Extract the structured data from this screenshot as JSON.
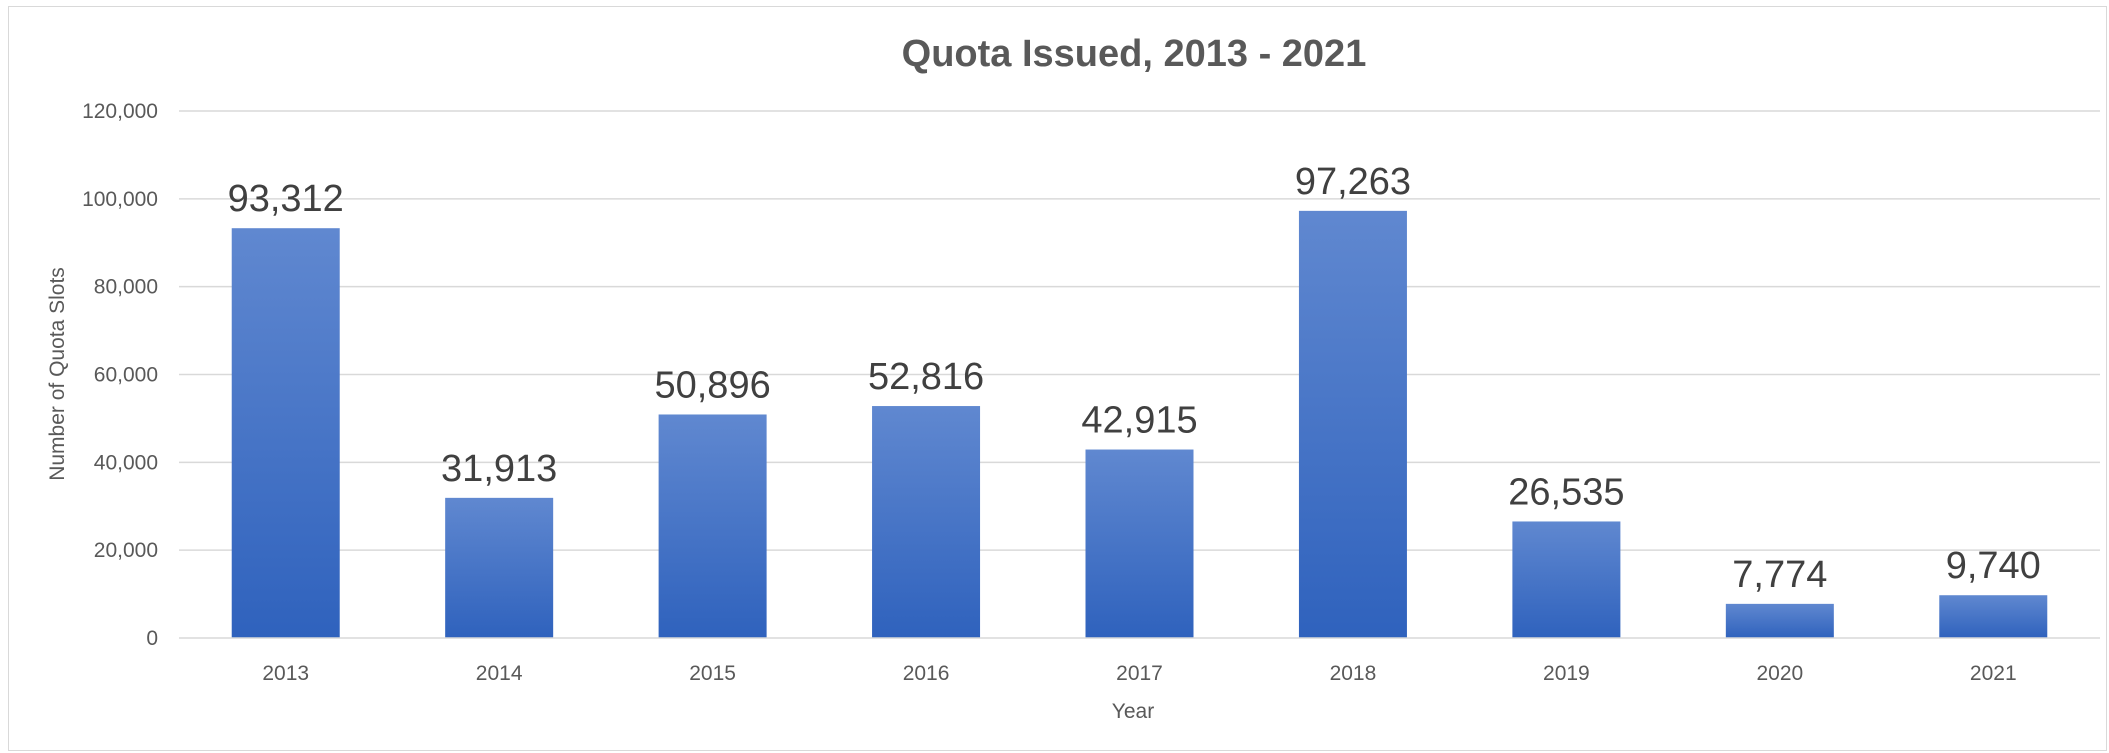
{
  "chart_data": {
    "type": "bar",
    "title": "Quota Issued, 2013 - 2021",
    "xlabel": "Year",
    "ylabel": "Number of Quota Slots",
    "categories": [
      "2013",
      "2014",
      "2015",
      "2016",
      "2017",
      "2018",
      "2019",
      "2020",
      "2021"
    ],
    "values": [
      93312,
      31913,
      50896,
      52816,
      42915,
      97263,
      26535,
      7774,
      9740
    ],
    "data_labels": [
      "93,312",
      "31,913",
      "50,896",
      "52,816",
      "42,915",
      "97,263",
      "26,535",
      "7,774",
      "9,740"
    ],
    "ylim": [
      0,
      120000
    ],
    "yticks": [
      0,
      20000,
      40000,
      60000,
      80000,
      100000,
      120000
    ],
    "ytick_labels": [
      "0",
      "20,000",
      "40,000",
      "60,000",
      "80,000",
      "100,000",
      "120,000"
    ],
    "grid": true,
    "legend": "none",
    "colors": {
      "bar_top": "#6088d0",
      "bar_bottom": "#2f62bd",
      "gridline": "#d9d9d9",
      "axis_line": "#d9d9d9",
      "text": "#595959",
      "data_label": "#404040"
    }
  }
}
